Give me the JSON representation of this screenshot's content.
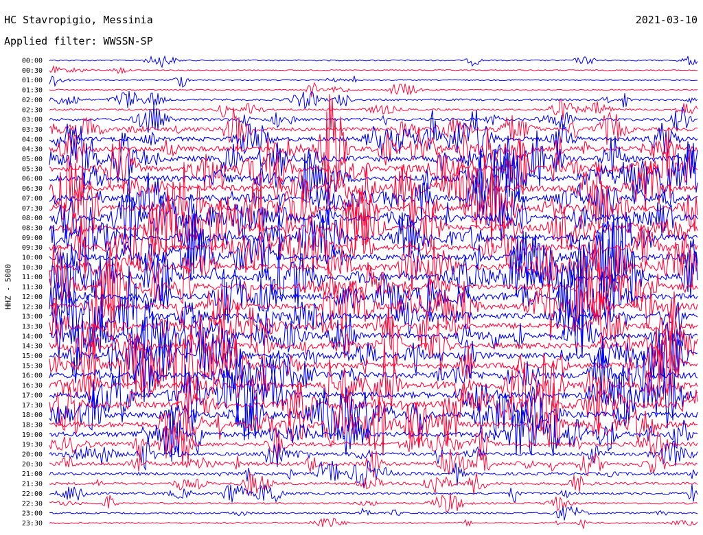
{
  "header": {
    "station": "HC Stavropigio, Messinia",
    "filter": "Applied filter: WWSSN-SP",
    "date": "2021-03-10"
  },
  "axis": {
    "channel_label": "HHZ - 5000"
  },
  "colors": {
    "even_trace": "#0000e6",
    "odd_trace": "#ff0a3c",
    "background": "#ffffff"
  },
  "chart_data": {
    "type": "line",
    "title": "HC Stavropigio, Messinia",
    "subtitle": "Applied filter: WWSSN-SP",
    "ylabel": "HHZ - 5000",
    "grid": false,
    "rows": [
      "00:00",
      "00:30",
      "01:00",
      "01:30",
      "02:00",
      "02:30",
      "03:00",
      "03:30",
      "04:00",
      "04:30",
      "05:00",
      "05:30",
      "06:00",
      "06:30",
      "07:00",
      "07:30",
      "08:00",
      "08:30",
      "09:00",
      "09:30",
      "10:00",
      "10:30",
      "11:00",
      "11:30",
      "12:00",
      "12:30",
      "13:00",
      "13:30",
      "14:00",
      "14:30",
      "15:00",
      "15:30",
      "16:00",
      "16:30",
      "17:00",
      "17:30",
      "18:00",
      "18:30",
      "19:00",
      "19:30",
      "20:00",
      "20:30",
      "21:00",
      "21:30",
      "22:00",
      "22:30",
      "23:00",
      "23:30"
    ],
    "activity_level": [
      0.1,
      0.05,
      0.1,
      0.1,
      0.25,
      0.2,
      0.4,
      0.55,
      0.7,
      0.8,
      0.9,
      1.0,
      1.0,
      1.0,
      1.0,
      1.0,
      1.0,
      1.0,
      1.0,
      1.0,
      1.0,
      1.0,
      1.0,
      1.0,
      1.0,
      1.0,
      1.0,
      1.0,
      1.0,
      1.0,
      1.0,
      1.0,
      1.0,
      1.0,
      1.0,
      1.0,
      0.95,
      0.9,
      0.8,
      0.6,
      0.5,
      0.55,
      0.45,
      0.35,
      0.3,
      0.2,
      0.15,
      0.15
    ]
  }
}
